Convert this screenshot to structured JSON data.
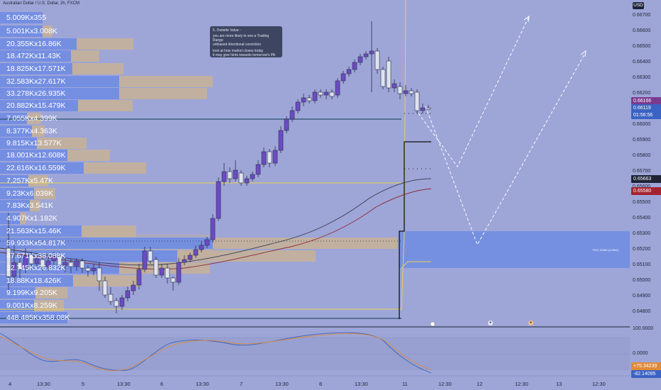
{
  "chart_title": "Australian Dollar / U.S. Dollar, 2h, FXCM",
  "currency_button": "USD",
  "note": {
    "title": "5. Outside Value -",
    "lines": [
      "you are more likely to see a Trading Range",
      "unbiased directional conviction",
      "look at how market closes today",
      "it may give hints towards tomorrow's PA"
    ]
  },
  "zone_label": "POC ZONE (LONG)",
  "volume_profile": [
    "5.009Kx355",
    "5.001Kx3.008K",
    "20.355Kx16.86K",
    "18.472Kx11.43K",
    "18.825Kx17.571K",
    "32.583Kx27.617K",
    "33.278Kx26.935K",
    "20.882Kx15.479K",
    "7.055Kx4.399K",
    "8.377Kx4.363K",
    "9.815Kx13.577K",
    "18.001Kx12.608K",
    "22.616Kx16.559K",
    "7.257Kx5.47K",
    "9.23Kx6.039K",
    "7.83Kx3.541K",
    "4.907Kx1.182K",
    "21.563Kx15.46K",
    "59.933Kx54.817K",
    "47.671Kx38.088K",
    "32.745Kx26.832K",
    "18.88Kx18.426K",
    "9.199Kx9.205K",
    "9.001Kx8.259K",
    "448.485Kx358.08K"
  ],
  "price_axis": [
    "0.66700",
    "0.66600",
    "0.66500",
    "0.66400",
    "0.66300",
    "0.66200",
    "0.66100",
    "0.66000",
    "0.65900",
    "0.65800",
    "0.65700",
    "0.65600",
    "0.65500",
    "0.65400",
    "0.65300",
    "0.65200",
    "0.65100",
    "0.65000",
    "0.64900",
    "0.64800"
  ],
  "price_tags": {
    "tag1": "0.66166",
    "tag2": "0.66119",
    "countdown": "01:56:56",
    "tag3": "0.65663",
    "tag4": "0.65580"
  },
  "osc_axis": [
    "100.0000",
    "0.0000"
  ],
  "osc_tags": [
    "+75.34239",
    "-82.14095"
  ],
  "time_axis": [
    "4",
    "13:30",
    "5",
    "13:30",
    "6",
    "13:30",
    "7",
    "13:30",
    "8",
    "13:30",
    "11",
    "12:30",
    "12",
    "12:30",
    "13",
    "12:30"
  ],
  "colors": {
    "background": "#9ea6d8",
    "bull": "#6c4bc4",
    "bear": "#dfe3ef",
    "vp_blue": "#6f8ce3",
    "vp_tan": "#c7b197",
    "zone": "#6f8ce3"
  }
}
